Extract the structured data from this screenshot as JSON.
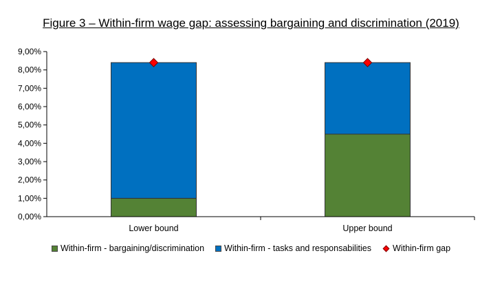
{
  "chart_data": {
    "type": "bar",
    "stacked": true,
    "title": "Figure 3 – Within-firm wage gap: assessing bargaining and discrimination (2019)",
    "categories": [
      "Lower bound",
      "Upper bound"
    ],
    "series": [
      {
        "name": "Within-firm - bargaining/discrimination",
        "kind": "bar",
        "color": "#548235",
        "values": [
          0.01,
          0.045
        ]
      },
      {
        "name": "Within-firm - tasks and responsabilities",
        "kind": "bar",
        "color": "#0070c0",
        "values": [
          0.074,
          0.039
        ]
      },
      {
        "name": "Within-firm gap",
        "kind": "marker",
        "color": "#ff0000",
        "values": [
          0.084,
          0.084
        ]
      }
    ],
    "ylim": [
      0,
      0.09
    ],
    "yticks": [
      "0,00%",
      "1,00%",
      "2,00%",
      "3,00%",
      "4,00%",
      "5,00%",
      "6,00%",
      "7,00%",
      "8,00%",
      "9,00%"
    ],
    "xlabel": "",
    "ylabel": "",
    "grid": false,
    "legend_position": "bottom"
  }
}
